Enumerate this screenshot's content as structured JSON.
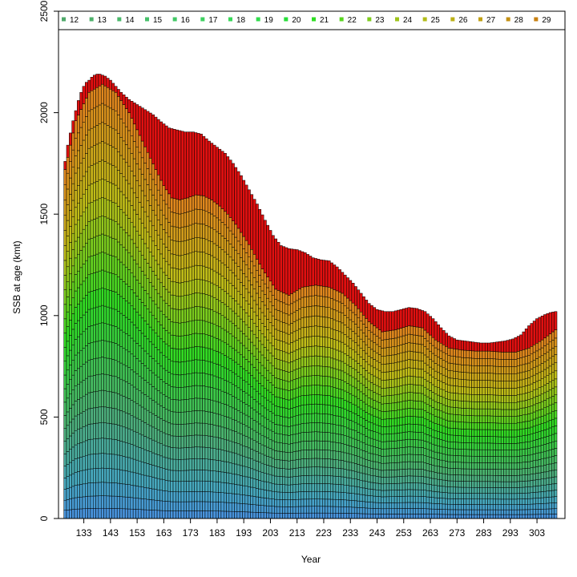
{
  "chart_data": {
    "type": "bar",
    "stacked": true,
    "xlabel": "Year",
    "ylabel": "SSB at age (kmt)",
    "ylim": [
      0,
      2500
    ],
    "yticks": [
      0,
      500,
      1000,
      1500,
      2000,
      2500
    ],
    "xlim": [
      123.5,
      313.5
    ],
    "xticks": [
      133,
      143,
      153,
      163,
      173,
      183,
      193,
      203,
      213,
      223,
      233,
      243,
      253,
      263,
      273,
      283,
      293,
      303
    ],
    "year_range": [
      126,
      310
    ],
    "legend": {
      "placement": "top",
      "entries": [
        "12",
        "13",
        "14",
        "15",
        "16",
        "17",
        "18",
        "19",
        "20",
        "21",
        "22",
        "23",
        "24",
        "25",
        "26",
        "27",
        "28",
        "29"
      ],
      "colors": [
        "#4fa86a",
        "#4db06a",
        "#4ab86a",
        "#46c06a",
        "#42c866",
        "#3ed060",
        "#38d858",
        "#30dc4c",
        "#26de38",
        "#2ede22",
        "#58d61e",
        "#7ecc1c",
        "#9ec41a",
        "#b2bc18",
        "#bcb016",
        "#c0a014",
        "#c49012",
        "#c88010"
      ]
    },
    "total_ssb": {
      "x": [
        126,
        127,
        128,
        129,
        130,
        131,
        132,
        133,
        134,
        135,
        136,
        137,
        138,
        139,
        140,
        141,
        143,
        145,
        147,
        150,
        153,
        156,
        159,
        162,
        165,
        168,
        171,
        174,
        177,
        180,
        183,
        186,
        189,
        192,
        195,
        198,
        201,
        204,
        207,
        210,
        213,
        216,
        219,
        222,
        225,
        228,
        231,
        234,
        237,
        240,
        243,
        246,
        249,
        252,
        255,
        258,
        261,
        264,
        267,
        270,
        273,
        276,
        279,
        282,
        285,
        288,
        291,
        294,
        297,
        300,
        303,
        306,
        308,
        310
      ],
      "y": [
        1760,
        1840,
        1900,
        1960,
        2010,
        2060,
        2100,
        2130,
        2150,
        2160,
        2175,
        2185,
        2190,
        2190,
        2185,
        2180,
        2160,
        2130,
        2100,
        2065,
        2040,
        2015,
        1990,
        1955,
        1925,
        1915,
        1905,
        1905,
        1895,
        1860,
        1830,
        1800,
        1750,
        1690,
        1620,
        1550,
        1470,
        1395,
        1345,
        1330,
        1325,
        1310,
        1285,
        1275,
        1270,
        1240,
        1200,
        1160,
        1110,
        1060,
        1030,
        1020,
        1020,
        1030,
        1040,
        1035,
        1020,
        985,
        940,
        900,
        880,
        875,
        870,
        865,
        865,
        870,
        875,
        885,
        905,
        950,
        985,
        1005,
        1015,
        1020
      ]
    },
    "top_age_class_lower_boundary": {
      "x": [
        126,
        130,
        135,
        140,
        145,
        150,
        155,
        160,
        163,
        166,
        169,
        172,
        175,
        178,
        181,
        184,
        187,
        190,
        195,
        200,
        205,
        210,
        215,
        220,
        225,
        230,
        235,
        240,
        245,
        250,
        255,
        260,
        265,
        270,
        275,
        280,
        285,
        290,
        295,
        300,
        305,
        310
      ],
      "y": [
        1720,
        1960,
        2100,
        2140,
        2100,
        2000,
        1860,
        1720,
        1640,
        1580,
        1570,
        1580,
        1595,
        1590,
        1570,
        1540,
        1500,
        1450,
        1350,
        1230,
        1130,
        1100,
        1140,
        1150,
        1140,
        1110,
        1050,
        970,
        920,
        930,
        950,
        940,
        880,
        840,
        830,
        825,
        825,
        820,
        820,
        840,
        880,
        930
      ]
    }
  }
}
